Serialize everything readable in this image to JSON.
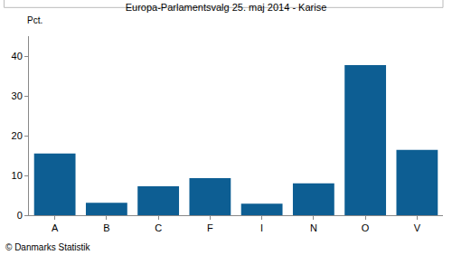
{
  "chart_data": {
    "type": "bar",
    "title": "Europa-Parlamentsvalg 25. maj 2014 - Karise",
    "ylabel": "Pct.",
    "source": "© Danmarks Statistik",
    "categories": [
      "A",
      "B",
      "C",
      "F",
      "I",
      "N",
      "O",
      "V"
    ],
    "values": [
      15.5,
      3.1,
      7.3,
      9.3,
      2.9,
      8.0,
      37.7,
      16.4
    ],
    "color": "#0d5e93",
    "ylim": [
      0,
      45
    ],
    "yticks": [
      0,
      10,
      20,
      30,
      40
    ],
    "grid": false
  }
}
